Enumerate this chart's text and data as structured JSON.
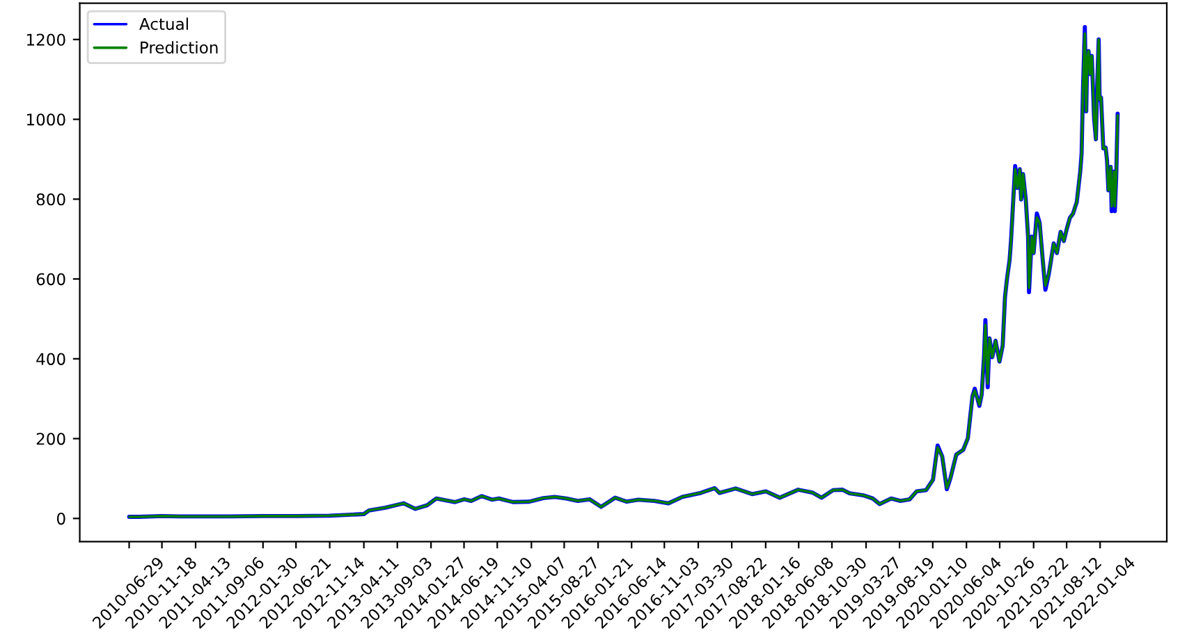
{
  "chart_data": {
    "type": "line",
    "x": [
      "2010-06-29",
      "2010-08-12",
      "2010-11-18",
      "2011-02-09",
      "2011-04-13",
      "2011-09-06",
      "2012-01-30",
      "2012-06-21",
      "2012-11-14",
      "2013-02-02",
      "2013-04-11",
      "2013-05-03",
      "2013-07-13",
      "2013-10-01",
      "2013-11-20",
      "2014-01-10",
      "2014-02-19",
      "2014-05-11",
      "2014-06-20",
      "2014-07-20",
      "2014-09-04",
      "2014-10-18",
      "2014-11-17",
      "2015-01-17",
      "2015-03-28",
      "2015-05-28",
      "2015-07-17",
      "2015-09-05",
      "2015-10-25",
      "2015-12-15",
      "2016-02-03",
      "2016-04-04",
      "2016-05-24",
      "2016-07-13",
      "2016-09-21",
      "2016-11-21",
      "2017-01-20",
      "2017-04-10",
      "2017-06-09",
      "2017-06-30",
      "2017-09-08",
      "2017-11-18",
      "2018-01-17",
      "2018-03-18",
      "2018-06-06",
      "2018-08-06",
      "2018-09-15",
      "2018-11-04",
      "2018-12-15",
      "2019-01-14",
      "2019-03-15",
      "2019-04-25",
      "2019-05-25",
      "2019-07-14",
      "2019-08-23",
      "2019-10-02",
      "2019-11-01",
      "2019-12-12",
      "2020-01-11",
      "2020-01-31",
      "2020-02-20",
      "2020-03-11",
      "2020-03-27",
      "2020-04-21",
      "2020-05-21",
      "2020-06-10",
      "2020-06-30",
      "2020-07-10",
      "2020-07-30",
      "2020-08-09",
      "2020-08-19",
      "2020-08-25",
      "2020-09-04",
      "2020-09-12",
      "2020-09-24",
      "2020-10-08",
      "2020-10-25",
      "2020-11-08",
      "2020-11-18",
      "2020-11-27",
      "2020-12-08",
      "2020-12-14",
      "2021-01-01",
      "2021-01-11",
      "2021-01-21",
      "2021-01-27",
      "2021-02-04",
      "2021-02-16",
      "2021-02-26",
      "2021-03-02",
      "2021-03-14",
      "2021-03-22",
      "2021-04-05",
      "2021-04-17",
      "2021-04-27",
      "2021-05-12",
      "2021-05-27",
      "2021-06-17",
      "2021-07-01",
      "2021-07-17",
      "2021-07-31",
      "2021-08-12",
      "2021-08-26",
      "2021-09-09",
      "2021-09-25",
      "2021-10-10",
      "2021-10-16",
      "2021-10-22",
      "2021-10-30",
      "2021-11-05",
      "2021-11-09",
      "2021-11-15",
      "2021-11-21",
      "2021-11-29",
      "2021-12-05",
      "2021-12-09",
      "2021-12-17",
      "2021-12-23",
      "2021-12-29",
      "2022-01-02",
      "2022-01-08",
      "2022-01-18",
      "2022-01-28",
      "2022-02-03",
      "2022-02-09",
      "2022-02-19",
      "2022-02-23",
      "2022-03-01",
      "2022-03-05",
      "2022-03-09",
      "2022-03-15",
      "2022-03-21"
    ],
    "series": [
      {
        "name": "Actual",
        "color": "#0000ff",
        "values": [
          4,
          4,
          6,
          5,
          5,
          5,
          6,
          6,
          7,
          9,
          11,
          20,
          27,
          38,
          24,
          33,
          50,
          41,
          48,
          44,
          56,
          47,
          50,
          41,
          42,
          51,
          54,
          50,
          44,
          48,
          29,
          52,
          42,
          47,
          44,
          38,
          54,
          64,
          76,
          64,
          75,
          61,
          68,
          52,
          72,
          65,
          52,
          71,
          72,
          63,
          58,
          50,
          36,
          50,
          44,
          48,
          68,
          71,
          97,
          183,
          155,
          73,
          102,
          160,
          172,
          201,
          306,
          325,
          282,
          311,
          404,
          497,
          329,
          451,
          404,
          445,
          393,
          433,
          555,
          602,
          648,
          695,
          883,
          828,
          875,
          799,
          863,
          799,
          706,
          567,
          706,
          665,
          764,
          741,
          671,
          573,
          613,
          689,
          665,
          718,
          695,
          724,
          753,
          764,
          793,
          869,
          915,
          1078,
          1231,
          1020,
          1148,
          1171,
          1113,
          1159,
          1066,
          1002,
          950,
          1096,
          1200,
          1049,
          1055,
          927,
          929,
          898,
          822,
          881,
          770,
          811,
          869,
          770,
          858,
          1014
        ]
      },
      {
        "name": "Prediction",
        "color": "#008000",
        "values": [
          4,
          4,
          6,
          5,
          5,
          5,
          6,
          6,
          7,
          9,
          11,
          20,
          27,
          38,
          24,
          33,
          50,
          41,
          48,
          44,
          56,
          47,
          50,
          41,
          42,
          51,
          54,
          50,
          44,
          48,
          29,
          52,
          42,
          47,
          44,
          38,
          54,
          64,
          76,
          64,
          75,
          61,
          68,
          52,
          72,
          65,
          52,
          71,
          72,
          63,
          58,
          50,
          36,
          50,
          44,
          48,
          68,
          71,
          97,
          178,
          155,
          76,
          102,
          160,
          172,
          201,
          306,
          320,
          285,
          311,
          404,
          485,
          338,
          451,
          404,
          445,
          393,
          433,
          555,
          602,
          648,
          695,
          875,
          828,
          875,
          799,
          863,
          799,
          706,
          578,
          706,
          665,
          754,
          741,
          671,
          583,
          613,
          689,
          665,
          718,
          695,
          724,
          753,
          764,
          793,
          869,
          915,
          1078,
          1215,
          1020,
          1148,
          1171,
          1113,
          1159,
          1066,
          1002,
          950,
          1096,
          1200,
          1049,
          1055,
          927,
          929,
          898,
          822,
          881,
          782,
          811,
          869,
          782,
          858,
          1010
        ]
      }
    ],
    "xlim": [
      "2009-11-27",
      "2022-10-20"
    ],
    "xticks": [
      "2010-06-29",
      "2010-11-18",
      "2011-04-13",
      "2011-09-06",
      "2012-01-30",
      "2012-06-21",
      "2012-11-14",
      "2013-04-11",
      "2013-09-03",
      "2014-01-27",
      "2014-06-19",
      "2014-11-10",
      "2015-04-07",
      "2015-08-27",
      "2016-01-21",
      "2016-06-14",
      "2016-11-03",
      "2017-03-30",
      "2017-08-22",
      "2018-01-16",
      "2018-06-08",
      "2018-10-30",
      "2019-03-27",
      "2019-08-19",
      "2020-01-10",
      "2020-06-04",
      "2020-10-26",
      "2021-03-22",
      "2021-08-12",
      "2022-01-04"
    ],
    "ylim": [
      -58,
      1291
    ],
    "yticks": [
      0,
      200,
      400,
      600,
      800,
      1000,
      1200
    ],
    "legend": "top left",
    "line_style": "solid"
  }
}
